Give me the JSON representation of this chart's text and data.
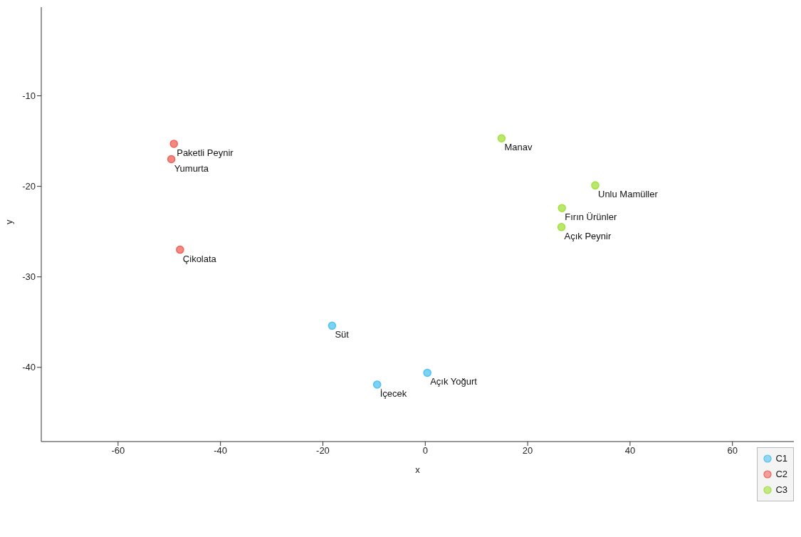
{
  "chart_data": {
    "type": "scatter",
    "xlabel": "x",
    "ylabel": "y",
    "xlim": [
      -75,
      72
    ],
    "ylim": [
      -48.2,
      -0.2
    ],
    "xticks": [
      -60,
      -40,
      -20,
      0,
      20,
      40,
      60
    ],
    "yticks": [
      -40,
      -30,
      -20,
      -10
    ],
    "grid": false,
    "legend": "bottom right",
    "marker": "circle",
    "series": [
      {
        "name": "C1",
        "color": "#4fc3f0",
        "x": [
          -18.2,
          -9.4,
          0.4
        ],
        "values": [
          -35.4,
          -41.9,
          -40.6
        ]
      },
      {
        "name": "C2",
        "color": "#f0625a",
        "x": [
          -49.1,
          -49.6,
          -47.9
        ],
        "values": [
          -15.3,
          -17.0,
          -27.0
        ]
      },
      {
        "name": "C3",
        "color": "#a3e03c",
        "x": [
          14.9,
          33.2,
          26.7,
          26.6
        ],
        "values": [
          -14.7,
          -19.9,
          -22.4,
          -24.5
        ]
      }
    ],
    "annotations": [
      {
        "text": "Süt",
        "x": -18.2,
        "y": -35.4
      },
      {
        "text": "İçecek",
        "x": -9.4,
        "y": -41.9
      },
      {
        "text": "Açık Yoğurt",
        "x": 0.4,
        "y": -40.6
      },
      {
        "text": "Paketli Peynir",
        "x": -49.1,
        "y": -15.3
      },
      {
        "text": "Yumurta",
        "x": -49.6,
        "y": -17.0
      },
      {
        "text": "Çikolata",
        "x": -47.9,
        "y": -27.0
      },
      {
        "text": "Manav",
        "x": 14.9,
        "y": -14.7
      },
      {
        "text": "Unlu Mamüller",
        "x": 33.2,
        "y": -19.9
      },
      {
        "text": "Fırın Ürünler",
        "x": 26.7,
        "y": -22.4
      },
      {
        "text": "Açık Peynir",
        "x": 26.6,
        "y": -24.5
      }
    ]
  }
}
